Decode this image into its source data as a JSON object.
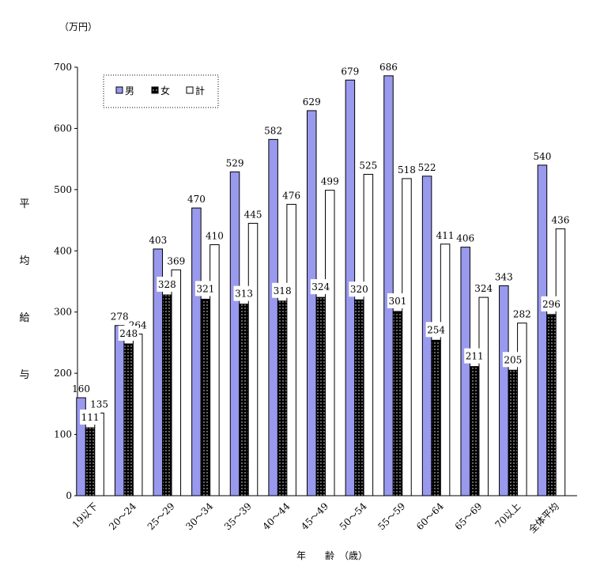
{
  "chart_data": {
    "type": "bar",
    "unit_label": "（万円）",
    "ylabel_chars": [
      "平",
      "均",
      "給",
      "与"
    ],
    "xlabel": "年　　齢　（歳）",
    "categories": [
      "19以下",
      "20～24",
      "25～29",
      "30～34",
      "35～39",
      "40～44",
      "45～49",
      "50～54",
      "55～59",
      "60～64",
      "65～69",
      "70以上",
      "全体平均"
    ],
    "series": [
      {
        "name": "男",
        "color": "#9999ee",
        "pattern": "solid",
        "values": [
          160,
          278,
          403,
          470,
          529,
          582,
          629,
          679,
          686,
          522,
          406,
          343,
          540
        ]
      },
      {
        "name": "女",
        "color": "#000000",
        "pattern": "dotted",
        "values": [
          111,
          248,
          328,
          321,
          313,
          318,
          324,
          320,
          301,
          254,
          211,
          205,
          296
        ]
      },
      {
        "name": "計",
        "color": "#ffffff",
        "pattern": "solid",
        "values": [
          135,
          264,
          369,
          410,
          445,
          476,
          499,
          525,
          518,
          411,
          324,
          282,
          436
        ]
      }
    ],
    "yticks": [
      "0",
      "100",
      "200",
      "300",
      "400",
      "500",
      "600",
      "700"
    ],
    "ylim": [
      0,
      700
    ],
    "legend_position": "top-left",
    "grid": false
  }
}
